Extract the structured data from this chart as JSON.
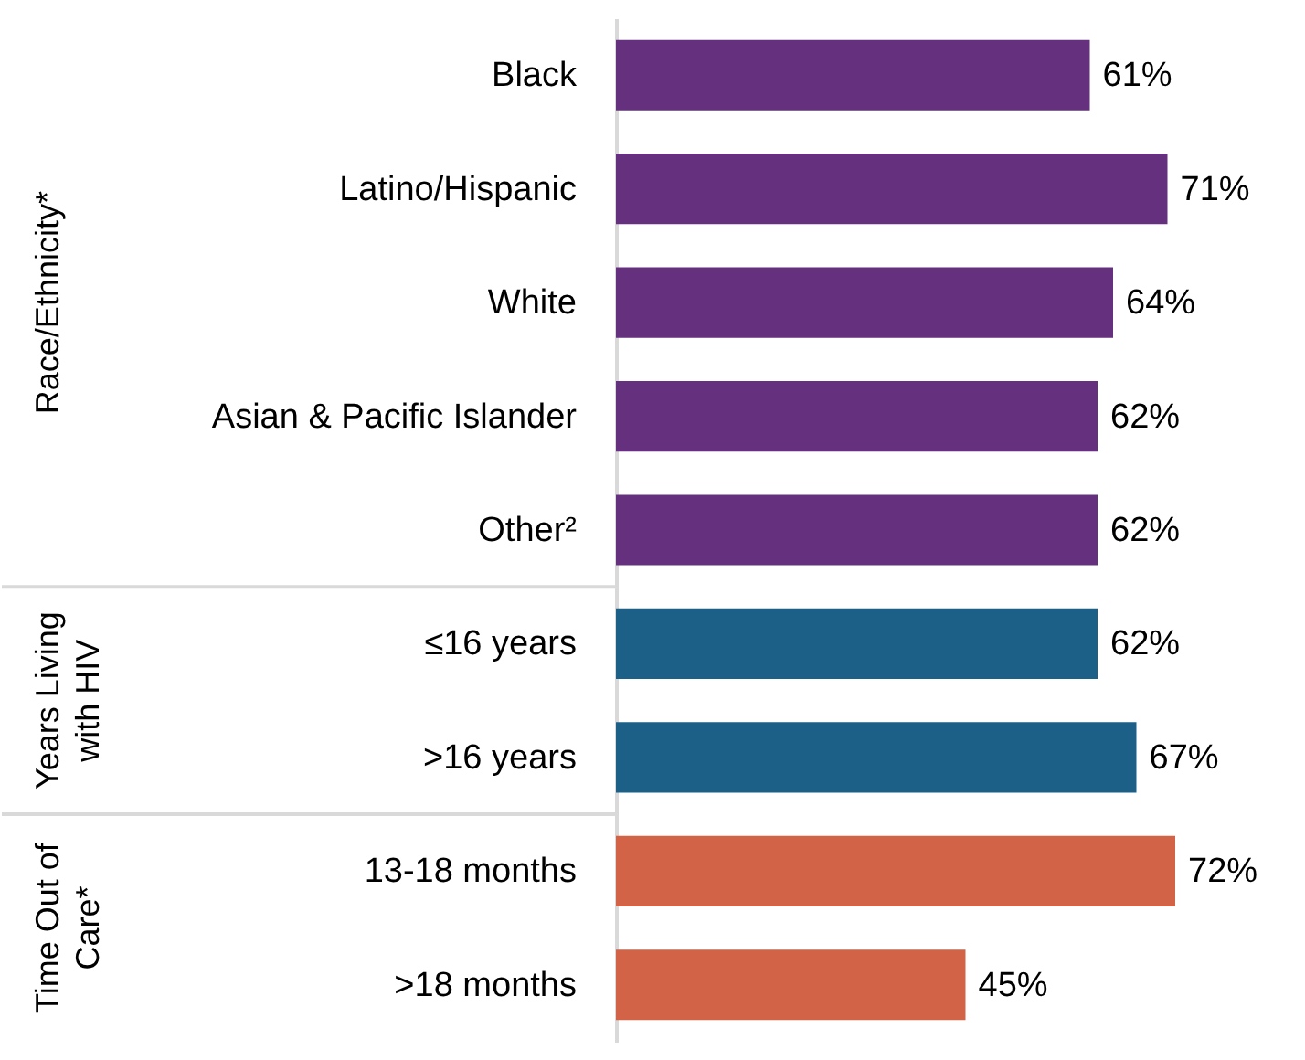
{
  "chart_data": {
    "type": "bar",
    "orientation": "horizontal",
    "categories": [
      "Black",
      "Latino/Hispanic",
      "White",
      "Asian & Pacific Islander",
      "Other²",
      "≤16 years",
      ">16 years",
      "13-18 months",
      ">18 months"
    ],
    "series": [
      {
        "color": "#65317f",
        "values": [
          61,
          71,
          64,
          62,
          62,
          null,
          null,
          null,
          null
        ],
        "value_labels": [
          "61%",
          "71%",
          "64%",
          "62%",
          "62%",
          null,
          null,
          null,
          null
        ]
      },
      {
        "color": "#1c6088",
        "values": [
          null,
          null,
          null,
          null,
          null,
          62,
          67,
          null,
          null
        ],
        "value_labels": [
          null,
          null,
          null,
          null,
          null,
          "62%",
          "67%",
          null,
          null
        ]
      },
      {
        "color": "#d26346",
        "values": [
          null,
          null,
          null,
          null,
          null,
          null,
          null,
          72,
          45
        ],
        "value_labels": [
          null,
          null,
          null,
          null,
          null,
          null,
          null,
          "72%",
          "45%"
        ]
      }
    ],
    "annotations": [
      "Race/Ethnicity*",
      "Years Living\nwith HIV",
      "Time Out of\nCare*"
    ]
  }
}
